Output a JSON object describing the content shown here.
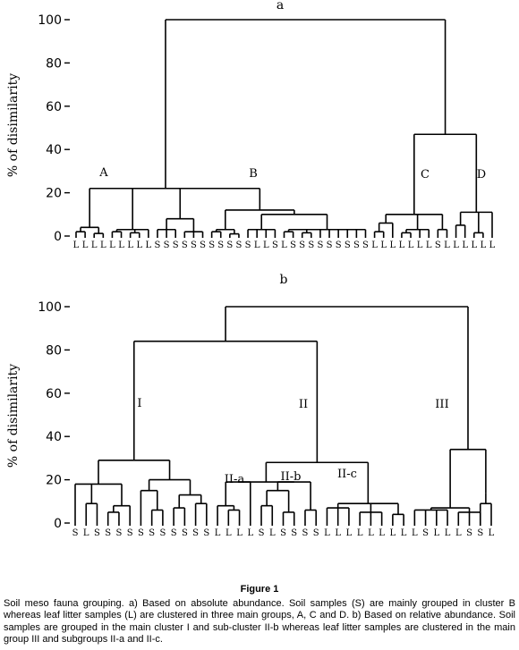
{
  "panel_a": {
    "label": "a",
    "ylabel": "% of disimilarity",
    "yticks": [
      "0",
      "20",
      "40",
      "60",
      "80",
      "100"
    ],
    "cluster_labels": [
      "A",
      "B",
      "C",
      "D"
    ],
    "leaf_labels": [
      "L",
      "L",
      "L",
      "L",
      "L",
      "L",
      "L",
      "L",
      "L",
      "S",
      "S",
      "S",
      "S",
      "S",
      "S",
      "S",
      "S",
      "S",
      "S",
      "S",
      "L",
      "L",
      "S",
      "L",
      "S",
      "S",
      "S",
      "S",
      "S",
      "S",
      "S",
      "S",
      "S",
      "L",
      "L",
      "L",
      "L",
      "L",
      "L",
      "L",
      "S",
      "L",
      "L",
      "L",
      "L",
      "L",
      "L"
    ]
  },
  "panel_b": {
    "label": "b",
    "ylabel": "% of disimilarity",
    "yticks": [
      "0",
      "20",
      "40",
      "60",
      "80",
      "100"
    ],
    "cluster_labels": [
      "I",
      "II",
      "III",
      "II-a",
      "II-b",
      "II-c"
    ],
    "leaf_labels": [
      "S",
      "L",
      "S",
      "S",
      "S",
      "S",
      "S",
      "S",
      "S",
      "S",
      "S",
      "S",
      "S",
      "L",
      "L",
      "L",
      "L",
      "S",
      "L",
      "S",
      "S",
      "S",
      "S",
      "L",
      "L",
      "L",
      "L",
      "L",
      "L",
      "L",
      "L",
      "L",
      "S",
      "L",
      "L",
      "L",
      "S",
      "S",
      "L"
    ]
  },
  "caption": {
    "title": "Figure 1",
    "text": "Soil meso fauna grouping. a) Based on absolute abundance. Soil samples (S) are mainly grouped in cluster B whereas leaf litter samples (L) are clustered in three main groups, A, C and D. b) Based on relative abundance. Soil samples are grouped in the main cluster I and sub-cluster II-b whereas leaf litter samples are clustered in the main group III and subgroups II-a and II-c."
  }
}
